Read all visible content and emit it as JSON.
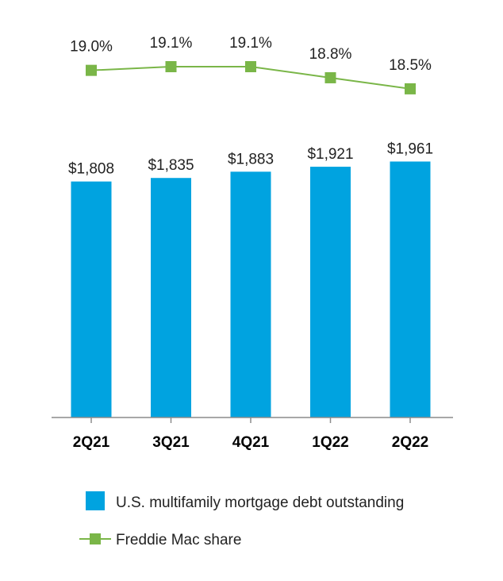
{
  "chart_data": {
    "type": "bar",
    "categories": [
      "2Q21",
      "3Q21",
      "4Q21",
      "1Q22",
      "2Q22"
    ],
    "series": [
      {
        "name": "U.S. multifamily mortgage debt outstanding",
        "kind": "bar",
        "values": [
          1808,
          1835,
          1883,
          1921,
          1961
        ],
        "labels": [
          "$1,808",
          "$1,835",
          "$1,883",
          "$1,921",
          "$1,961"
        ],
        "color": "#00a3e0"
      },
      {
        "name": "Freddie Mac share",
        "kind": "line",
        "values": [
          19.0,
          19.1,
          19.1,
          18.8,
          18.5
        ],
        "labels": [
          "19.0%",
          "19.1%",
          "19.1%",
          "18.8%",
          "18.5%"
        ],
        "color": "#7ab648"
      }
    ],
    "ylim": [
      0,
      2000
    ],
    "grid": false,
    "legend_position": "bottom"
  }
}
